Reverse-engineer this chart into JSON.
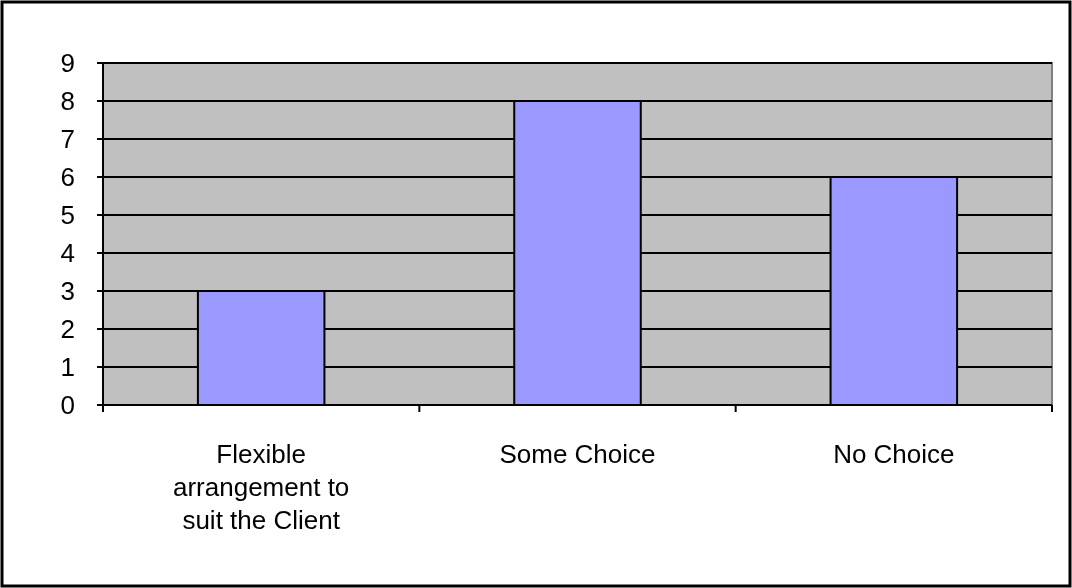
{
  "chart_data": {
    "type": "bar",
    "categories": [
      "Flexible arrangement to suit the Client",
      "Some Choice",
      "No Choice"
    ],
    "values": [
      3,
      8,
      6
    ],
    "color": "#9999ff",
    "ylim": [
      0,
      9
    ],
    "yticks": [
      0,
      1,
      2,
      3,
      4,
      5,
      6,
      7,
      8,
      9
    ],
    "grid": "y"
  }
}
